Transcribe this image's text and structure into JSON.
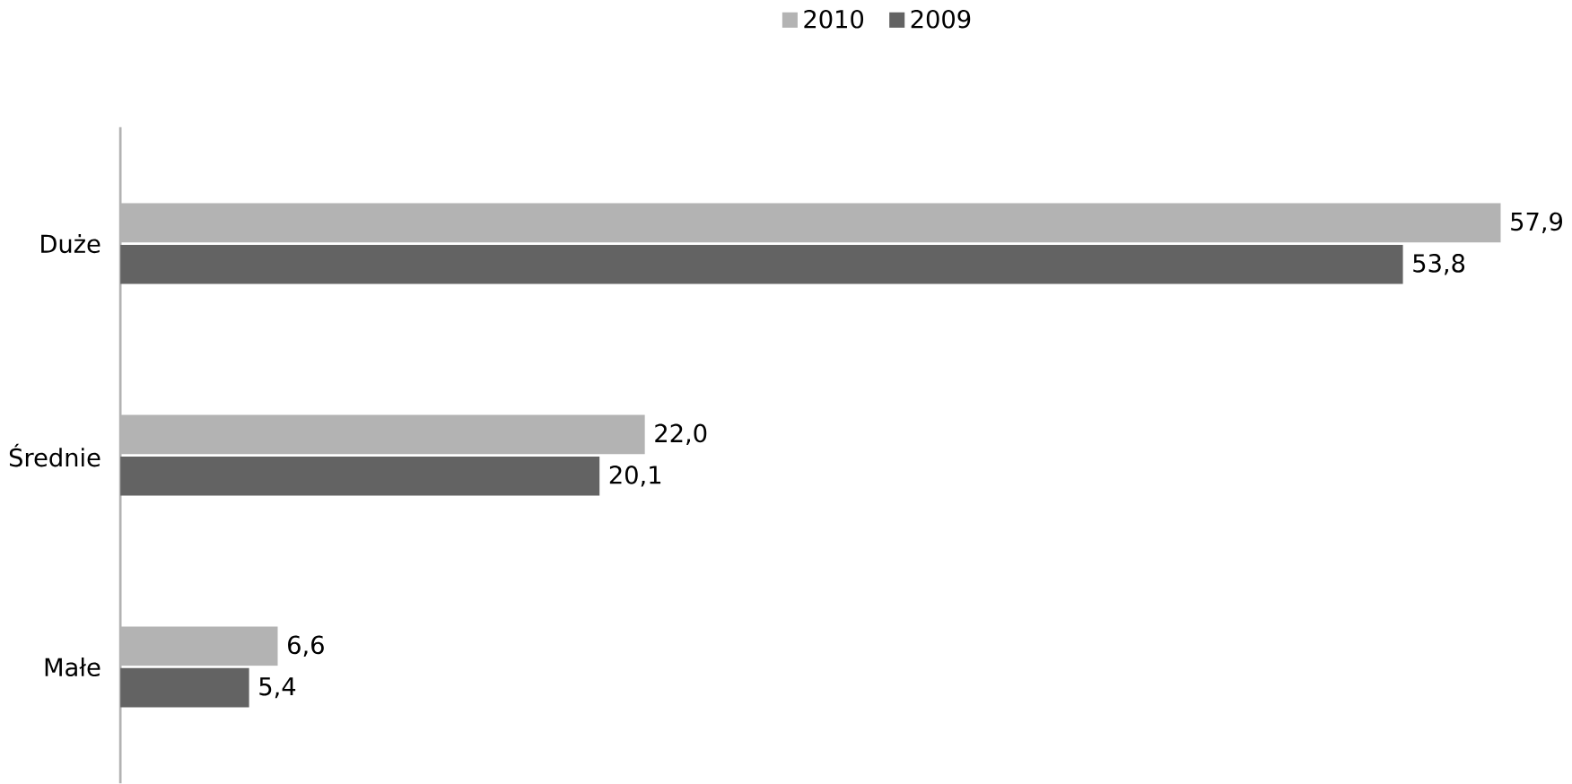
{
  "chart_data": {
    "type": "bar",
    "orientation": "horizontal",
    "categories": [
      "Duże",
      "Średnie",
      "Małe"
    ],
    "series": [
      {
        "name": "2010",
        "color": "#b3b3b3",
        "values": [
          57.9,
          22.0,
          6.6
        ],
        "value_labels": [
          "57,9",
          "22,0",
          "6,6"
        ]
      },
      {
        "name": "2009",
        "color": "#636363",
        "values": [
          53.8,
          20.1,
          5.4
        ],
        "value_labels": [
          "53,8",
          "20,1",
          "5,4"
        ]
      }
    ],
    "legend": "top"
  }
}
